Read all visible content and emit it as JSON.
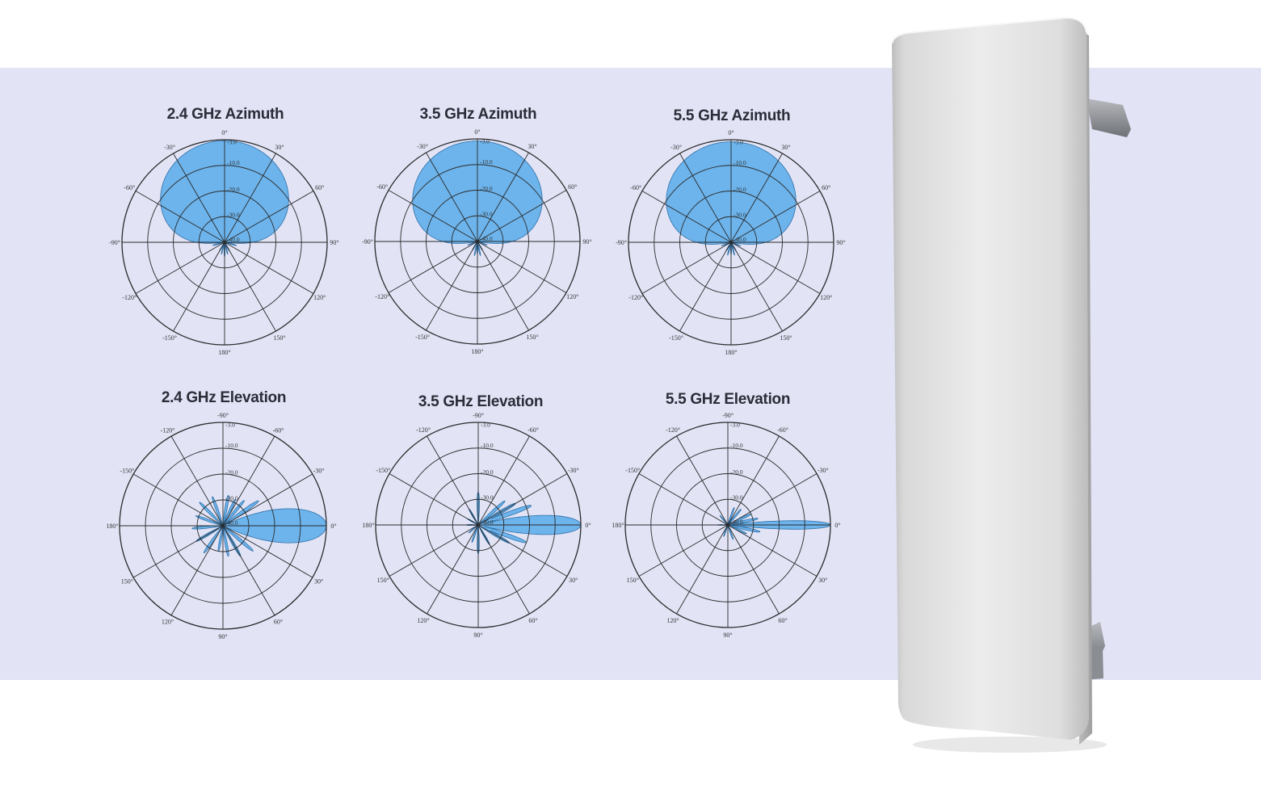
{
  "colors": {
    "band": "#e2e4f6",
    "lobe_fill": "#6db4ec",
    "lobe_stroke": "#2f6fa6",
    "grid": "#2a2a2a",
    "antenna_body": "#e4e4e4"
  },
  "product_image": {
    "icon": "sector-panel-antenna"
  },
  "chart_data": [
    {
      "type": "polar",
      "title": "2.4 GHz Azimuth",
      "plane": "azimuth",
      "angle_labels": [
        "0°",
        "30°",
        "60°",
        "90°",
        "120°",
        "150°",
        "180°",
        "-150°",
        "-120°",
        "-90°",
        "-60°",
        "-30°"
      ],
      "ring_labels": [
        "-3.0",
        "-10.0",
        "-20.0",
        "-30.0",
        "-40.0"
      ],
      "series": [
        {
          "main_lobe_hpbw_deg": 125,
          "front_back_db": 30,
          "lobes": [
            {
              "dir": 0,
              "half_width": 60,
              "level": 0.99
            }
          ],
          "spikes": [
            {
              "dir": 150,
              "level": 0.1
            },
            {
              "dir": 165,
              "level": 0.12
            },
            {
              "dir": 180,
              "level": 0.14
            },
            {
              "dir": 195,
              "level": 0.12
            },
            {
              "dir": 210,
              "level": 0.1
            },
            {
              "dir": 105,
              "level": 0.12
            },
            {
              "dir": 255,
              "level": 0.12
            }
          ]
        }
      ]
    },
    {
      "type": "polar",
      "title": "3.5 GHz Azimuth",
      "plane": "azimuth",
      "angle_labels": [
        "0°",
        "30°",
        "60°",
        "90°",
        "120°",
        "150°",
        "180°",
        "-150°",
        "-120°",
        "-90°",
        "-60°",
        "-30°"
      ],
      "ring_labels": [
        "-3.0",
        "-10.0",
        "-20.0",
        "-30.0",
        "-40.0"
      ],
      "series": [
        {
          "main_lobe_hpbw_deg": 125,
          "front_back_db": 30,
          "lobes": [
            {
              "dir": 0,
              "half_width": 62,
              "level": 0.98
            }
          ],
          "spikes": [
            {
              "dir": 150,
              "level": 0.1
            },
            {
              "dir": 168,
              "level": 0.14
            },
            {
              "dir": 180,
              "level": 0.12
            },
            {
              "dir": 192,
              "level": 0.14
            },
            {
              "dir": 210,
              "level": 0.1
            },
            {
              "dir": 110,
              "level": 0.1
            },
            {
              "dir": 250,
              "level": 0.1
            }
          ]
        }
      ]
    },
    {
      "type": "polar",
      "title": "5.5 GHz Azimuth",
      "plane": "azimuth",
      "angle_labels": [
        "0°",
        "30°",
        "60°",
        "90°",
        "120°",
        "150°",
        "180°",
        "-150°",
        "-120°",
        "-90°",
        "-60°",
        "-30°"
      ],
      "ring_labels": [
        "-3.0",
        "-10.0",
        "-20.0",
        "-30.0",
        "-40.0"
      ],
      "series": [
        {
          "main_lobe_hpbw_deg": 125,
          "front_back_db": 30,
          "lobes": [
            {
              "dir": 0,
              "half_width": 62,
              "level": 0.98
            }
          ],
          "spikes": [
            {
              "dir": 150,
              "level": 0.1
            },
            {
              "dir": 165,
              "level": 0.13
            },
            {
              "dir": 180,
              "level": 0.12
            },
            {
              "dir": 195,
              "level": 0.13
            },
            {
              "dir": 210,
              "level": 0.1
            },
            {
              "dir": 110,
              "level": 0.1
            },
            {
              "dir": 250,
              "level": 0.1
            }
          ]
        }
      ]
    },
    {
      "type": "polar",
      "title": "2.4 GHz Elevation",
      "plane": "elevation",
      "angle_labels": [
        "-90°",
        "-60°",
        "-30°",
        "0°",
        "30°",
        "60°",
        "90°",
        "120°",
        "150°",
        "180°",
        "-150°",
        "-120°"
      ],
      "ring_labels": [
        "-3.0",
        "-10.0",
        "-20.0",
        "-30.0",
        "-40.0"
      ],
      "series": [
        {
          "main_lobe_tilt_deg": 0,
          "lobes": [
            {
              "dir": 90,
              "half_width": 16,
              "level": 1.0
            }
          ],
          "spikes": [
            {
              "dir": 55,
              "level": 0.42
            },
            {
              "dir": 40,
              "level": 0.32
            },
            {
              "dir": 25,
              "level": 0.28
            },
            {
              "dir": 10,
              "level": 0.3
            },
            {
              "dir": 130,
              "level": 0.38
            },
            {
              "dir": 150,
              "level": 0.34
            },
            {
              "dir": 170,
              "level": 0.3
            },
            {
              "dir": 190,
              "level": 0.25
            },
            {
              "dir": 215,
              "level": 0.32
            },
            {
              "dir": 240,
              "level": 0.3
            },
            {
              "dir": 265,
              "level": 0.3
            },
            {
              "dir": 290,
              "level": 0.28
            },
            {
              "dir": 315,
              "level": 0.32
            },
            {
              "dir": 340,
              "level": 0.3
            }
          ]
        }
      ]
    },
    {
      "type": "polar",
      "title": "3.5 GHz Elevation",
      "plane": "elevation",
      "angle_labels": [
        "-90°",
        "-60°",
        "-30°",
        "0°",
        "30°",
        "60°",
        "90°",
        "120°",
        "150°",
        "180°",
        "-150°",
        "-120°"
      ],
      "ring_labels": [
        "-3.0",
        "-10.0",
        "-20.0",
        "-30.0",
        "-40.0"
      ],
      "series": [
        {
          "main_lobe_tilt_deg": 0,
          "lobes": [
            {
              "dir": 90,
              "half_width": 9,
              "level": 1.0
            }
          ],
          "spikes": [
            {
              "dir": 70,
              "level": 0.55
            },
            {
              "dir": 60,
              "level": 0.42
            },
            {
              "dir": 48,
              "level": 0.35
            },
            {
              "dir": 110,
              "level": 0.5
            },
            {
              "dir": 120,
              "level": 0.35
            },
            {
              "dir": 0,
              "level": 0.32
            },
            {
              "dir": 180,
              "level": 0.28
            },
            {
              "dir": 200,
              "level": 0.18
            },
            {
              "dir": 230,
              "level": 0.12
            },
            {
              "dir": 270,
              "level": 0.12
            },
            {
              "dir": 300,
              "level": 0.12
            },
            {
              "dir": 330,
              "level": 0.18
            },
            {
              "dir": 150,
              "level": 0.22
            }
          ]
        }
      ]
    },
    {
      "type": "polar",
      "title": "5.5 GHz Elevation",
      "plane": "elevation",
      "angle_labels": [
        "-90°",
        "-60°",
        "-30°",
        "0°",
        "30°",
        "60°",
        "90°",
        "120°",
        "150°",
        "180°",
        "-150°",
        "-120°"
      ],
      "ring_labels": [
        "-3.0",
        "-10.0",
        "-20.0",
        "-30.0",
        "-40.0"
      ],
      "series": [
        {
          "main_lobe_tilt_deg": 0,
          "lobes": [
            {
              "dir": 90,
              "half_width": 4,
              "level": 1.0
            }
          ],
          "spikes": [
            {
              "dir": 78,
              "level": 0.3
            },
            {
              "dir": 102,
              "level": 0.32
            },
            {
              "dir": 65,
              "level": 0.25
            },
            {
              "dir": 115,
              "level": 0.2
            },
            {
              "dir": 40,
              "level": 0.2
            },
            {
              "dir": 20,
              "level": 0.18
            },
            {
              "dir": 160,
              "level": 0.15
            },
            {
              "dir": 200,
              "level": 0.12
            },
            {
              "dir": 270,
              "level": 0.1
            },
            {
              "dir": 320,
              "level": 0.12
            }
          ]
        }
      ]
    }
  ]
}
